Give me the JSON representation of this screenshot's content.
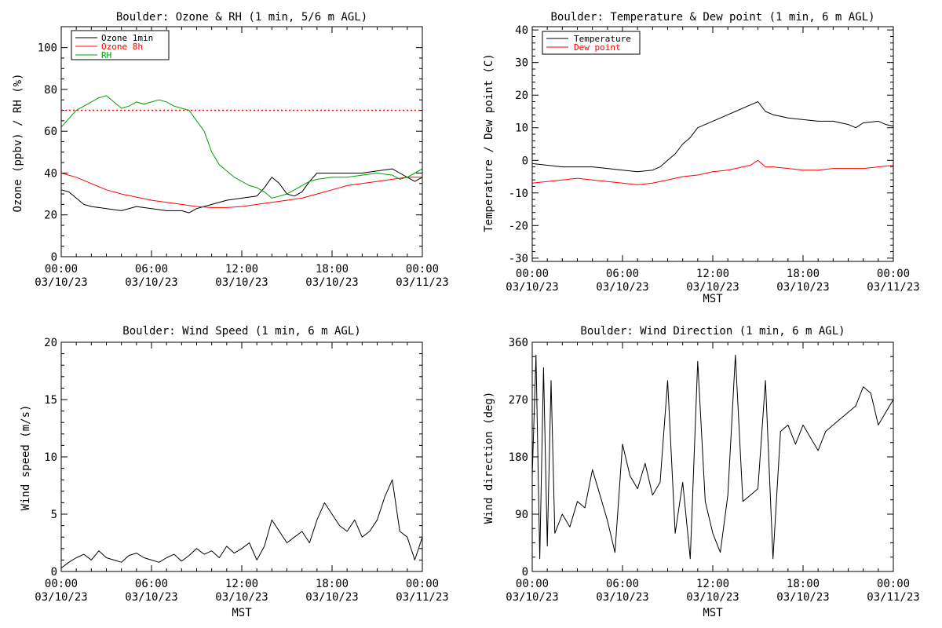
{
  "chart_data": [
    {
      "type": "line",
      "title": "Boulder: Ozone & RH (1 min, 5/6 m AGL)",
      "ylabel": "Ozone (ppbv) / RH (%)",
      "xlabel": "",
      "xlim": [
        0,
        24
      ],
      "ylim": [
        0,
        110
      ],
      "yticks": [
        0,
        20,
        40,
        60,
        80,
        100
      ],
      "xticks": [
        {
          "time": "00:00",
          "date": "03/10/23"
        },
        {
          "time": "06:00",
          "date": "03/10/23"
        },
        {
          "time": "12:00",
          "date": "03/10/23"
        },
        {
          "time": "18:00",
          "date": "03/10/23"
        },
        {
          "time": "00:00",
          "date": "03/11/23"
        }
      ],
      "legend": "top-left",
      "reference_line": {
        "y": 70,
        "color": "#ff0000",
        "style": "dotted"
      },
      "series": [
        {
          "name": "Ozone 1min",
          "color": "#000000",
          "x": [
            0,
            0.5,
            1,
            1.5,
            2,
            3,
            4,
            5,
            6,
            7,
            8,
            8.5,
            9,
            10,
            11,
            12,
            13,
            13.5,
            14,
            14.5,
            15,
            15.5,
            16,
            16.5,
            17,
            18,
            19,
            20,
            21,
            22,
            22.5,
            23,
            23.5,
            24
          ],
          "y": [
            32,
            31,
            28,
            25,
            24,
            23,
            22,
            24,
            23,
            22,
            22,
            21,
            23,
            25,
            27,
            28,
            29,
            33,
            38,
            35,
            30,
            29,
            31,
            36,
            40,
            40,
            40,
            40,
            41,
            42,
            40,
            38,
            36,
            38
          ]
        },
        {
          "name": "Ozone 8h",
          "color": "#ff0000",
          "x": [
            0,
            1,
            2,
            3,
            4,
            5,
            6,
            7,
            8,
            9,
            10,
            11,
            12,
            13,
            14,
            15,
            16,
            17,
            18,
            19,
            20,
            21,
            22,
            23,
            24
          ],
          "y": [
            40,
            38,
            35,
            32,
            30,
            28.5,
            27,
            26,
            25,
            24,
            23.5,
            23.5,
            24,
            25,
            26,
            27,
            28,
            30,
            32,
            34,
            35,
            36,
            37,
            38,
            38
          ]
        },
        {
          "name": "RH",
          "color": "#00a000",
          "x": [
            0,
            0.5,
            1,
            1.5,
            2,
            2.5,
            3,
            3.5,
            4,
            4.5,
            5,
            5.5,
            6,
            6.5,
            7,
            7.5,
            8,
            8.5,
            9,
            9.5,
            10,
            10.5,
            11,
            11.5,
            12,
            12.5,
            13,
            13.5,
            14,
            14.5,
            15,
            15.5,
            16,
            16.5,
            17,
            18,
            19,
            20,
            21,
            22,
            22.5,
            23,
            23.5,
            24
          ],
          "y": [
            62,
            66,
            70,
            72,
            74,
            76,
            77,
            74,
            71,
            72,
            74,
            73,
            74,
            75,
            74,
            72,
            71,
            70,
            65,
            60,
            50,
            44,
            41,
            38,
            36,
            34,
            33,
            31,
            28,
            29,
            30,
            32,
            34,
            36,
            37,
            38,
            38,
            39,
            40,
            39,
            37,
            38,
            40,
            42
          ]
        }
      ]
    },
    {
      "type": "line",
      "title": "Boulder: Temperature & Dew point (1 min, 6 m AGL)",
      "ylabel": "Temperature / Dew point (C)",
      "xlabel": "MST",
      "xlim": [
        0,
        24
      ],
      "ylim": [
        -31,
        41
      ],
      "yticks": [
        -30,
        -20,
        -10,
        0,
        10,
        20,
        30,
        40
      ],
      "xticks": [
        {
          "time": "00:00",
          "date": "03/10/23"
        },
        {
          "time": "06:00",
          "date": "03/10/23"
        },
        {
          "time": "12:00",
          "date": "03/10/23"
        },
        {
          "time": "18:00",
          "date": "03/10/23"
        },
        {
          "time": "00:00",
          "date": "03/11/23"
        }
      ],
      "legend": "top-left",
      "series": [
        {
          "name": "Temperature",
          "color": "#000000",
          "x": [
            0,
            1,
            2,
            3,
            4,
            5,
            6,
            7,
            8,
            8.5,
            9,
            9.5,
            10,
            10.5,
            11,
            11.5,
            12,
            12.5,
            13,
            13.5,
            14,
            14.5,
            15,
            15.5,
            16,
            17,
            18,
            19,
            20,
            21,
            21.5,
            22,
            23,
            23.5,
            24
          ],
          "y": [
            -1,
            -1.5,
            -2,
            -2,
            -2,
            -2.5,
            -3,
            -3.5,
            -3,
            -2,
            0,
            2,
            5,
            7,
            10,
            11,
            12,
            13,
            14,
            15,
            16,
            17,
            18,
            15,
            14,
            13,
            12.5,
            12,
            12,
            11,
            10,
            11.5,
            12,
            11,
            10.5
          ]
        },
        {
          "name": "Dew point",
          "color": "#ff0000",
          "x": [
            0,
            1,
            2,
            3,
            4,
            5,
            6,
            7,
            8,
            9,
            10,
            11,
            12,
            13,
            14,
            14.5,
            15,
            15.5,
            16,
            17,
            18,
            19,
            20,
            21,
            22,
            23,
            24
          ],
          "y": [
            -7,
            -6.5,
            -6,
            -5.5,
            -6,
            -6.5,
            -7,
            -7.5,
            -7,
            -6,
            -5,
            -4.5,
            -3.5,
            -3,
            -2,
            -1.5,
            0,
            -2,
            -2,
            -2.5,
            -3,
            -3,
            -2.5,
            -2.5,
            -2.5,
            -2,
            -1.5
          ]
        }
      ]
    },
    {
      "type": "line",
      "title": "Boulder: Wind Speed (1 min, 6 m AGL)",
      "ylabel": "Wind speed (m/s)",
      "xlabel": "MST",
      "xlim": [
        0,
        24
      ],
      "ylim": [
        0,
        20
      ],
      "yticks": [
        0,
        5,
        10,
        15,
        20
      ],
      "xticks": [
        {
          "time": "00:00",
          "date": "03/10/23"
        },
        {
          "time": "06:00",
          "date": "03/10/23"
        },
        {
          "time": "12:00",
          "date": "03/10/23"
        },
        {
          "time": "18:00",
          "date": "03/10/23"
        },
        {
          "time": "00:00",
          "date": "03/11/23"
        }
      ],
      "series": [
        {
          "name": "",
          "color": "#000000",
          "x": [
            0,
            0.5,
            1,
            1.5,
            2,
            2.5,
            3,
            3.5,
            4,
            4.5,
            5,
            5.5,
            6,
            6.5,
            7,
            7.5,
            8,
            8.5,
            9,
            9.5,
            10,
            10.5,
            11,
            11.5,
            12,
            12.5,
            13,
            13.5,
            14,
            14.5,
            15,
            15.5,
            16,
            16.5,
            17,
            17.5,
            18,
            18.5,
            19,
            19.5,
            20,
            20.5,
            21,
            21.5,
            22,
            22.5,
            23,
            23.5,
            24
          ],
          "y": [
            0.3,
            0.8,
            1.2,
            1.5,
            1.0,
            1.8,
            1.2,
            1.0,
            0.8,
            1.4,
            1.6,
            1.2,
            1.0,
            0.8,
            1.2,
            1.5,
            0.9,
            1.4,
            2.0,
            1.5,
            1.8,
            1.2,
            2.2,
            1.6,
            2.0,
            2.5,
            1.0,
            2.2,
            4.5,
            3.5,
            2.5,
            3.0,
            3.5,
            2.5,
            4.5,
            6.0,
            5.0,
            4.0,
            3.5,
            4.5,
            3.0,
            3.5,
            4.5,
            6.5,
            8.0,
            3.5,
            3.0,
            1.0,
            3.0
          ]
        }
      ]
    },
    {
      "type": "line",
      "title": "Boulder: Wind Direction (1 min, 6 m AGL)",
      "ylabel": "Wind direction (deg)",
      "xlabel": "MST",
      "xlim": [
        0,
        24
      ],
      "ylim": [
        0,
        360
      ],
      "yticks": [
        0,
        90,
        180,
        270,
        360
      ],
      "xticks": [
        {
          "time": "00:00",
          "date": "03/10/23"
        },
        {
          "time": "06:00",
          "date": "03/10/23"
        },
        {
          "time": "12:00",
          "date": "03/10/23"
        },
        {
          "time": "18:00",
          "date": "03/10/23"
        },
        {
          "time": "00:00",
          "date": "03/11/23"
        }
      ],
      "series": [
        {
          "name": "",
          "color": "#000000",
          "x": [
            0,
            0.25,
            0.5,
            0.75,
            1,
            1.25,
            1.5,
            2,
            2.5,
            3,
            3.5,
            4,
            4.5,
            5,
            5.5,
            6,
            6.5,
            7,
            7.5,
            8,
            8.5,
            9,
            9.5,
            10,
            10.5,
            11,
            11.5,
            12,
            12.5,
            13,
            13.5,
            14,
            14.5,
            15,
            15.5,
            16,
            16.5,
            17,
            17.5,
            18,
            18.5,
            19,
            19.5,
            20,
            20.5,
            21,
            21.5,
            22,
            22.5,
            23,
            23.5,
            24
          ],
          "y": [
            150,
            340,
            20,
            320,
            40,
            300,
            60,
            90,
            70,
            110,
            100,
            160,
            120,
            80,
            30,
            200,
            150,
            130,
            170,
            120,
            140,
            300,
            60,
            140,
            20,
            330,
            110,
            60,
            30,
            120,
            340,
            110,
            120,
            130,
            300,
            20,
            220,
            230,
            200,
            230,
            210,
            190,
            220,
            230,
            240,
            250,
            260,
            290,
            280,
            230,
            250,
            270
          ]
        }
      ]
    }
  ]
}
